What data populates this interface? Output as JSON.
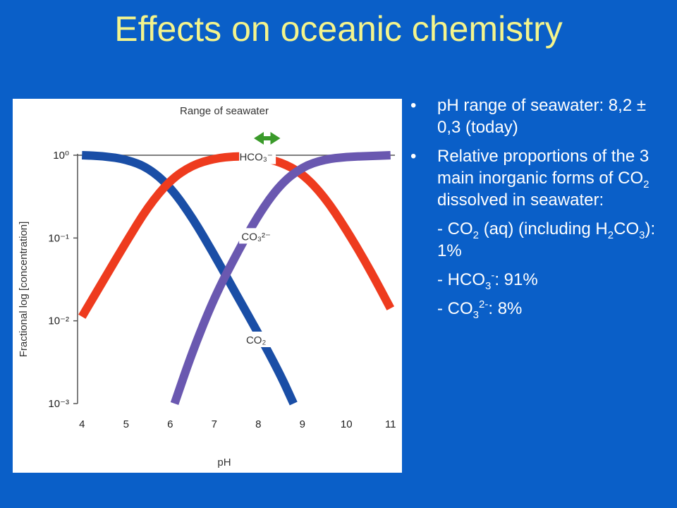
{
  "slide": {
    "title": "Effects on oceanic chemistry"
  },
  "bullets": {
    "b1": "pH range of seawater: 8,2 ± 0,3 (today)",
    "b2_line": "Relative proportions of the 3 main inorganic forms of",
    "b2_co": "CO",
    "b2_sub": "2",
    "b2_tail": "dissolved in seawater:",
    "s1_pre": "- CO",
    "s1_sub": "2",
    "s1_mid": "(aq) (including H",
    "s1_sub2": "2",
    "s1_co": "CO",
    "s1_sub3": "3",
    "s1_end": "): 1%",
    "s2_pre": "- HCO",
    "s2_sub": "3",
    "s2_sup": "-",
    "s2_end": ": 91%",
    "s3_pre": "- CO",
    "s3_sub": "3",
    "s3_sup": "2-",
    "s3_end": ": 8%",
    "dot": "•"
  },
  "chart_data": {
    "type": "line",
    "title": "Range of seawater",
    "xlabel": "pH",
    "ylabel": "Fractional log [concentration]",
    "x_ticks": [
      "4",
      "5",
      "6",
      "7",
      "8",
      "9",
      "10",
      "11"
    ],
    "y_ticks": [
      "10⁰",
      "10⁻¹",
      "10⁻²",
      "10⁻³"
    ],
    "xlim": [
      3.9,
      11.1
    ],
    "ylim": [
      -3,
      0
    ],
    "y_scale": "log",
    "highlight_range": [
      7.9,
      8.5
    ],
    "highlight_color": "#3a9a2a",
    "series": [
      {
        "name": "CO₂",
        "color": "#1a4ea6",
        "x": [
          4.0,
          4.5,
          5.0,
          5.5,
          6.0,
          6.5,
          7.0,
          7.5,
          8.0,
          8.5,
          8.8
        ],
        "y": [
          0.0,
          -0.01,
          -0.05,
          -0.15,
          -0.38,
          -0.75,
          -1.2,
          -1.68,
          -2.15,
          -2.65,
          -3.0
        ]
      },
      {
        "name": "HCO₃⁻",
        "color": "#ee3b1e",
        "x": [
          4.0,
          4.5,
          5.0,
          5.5,
          6.0,
          6.5,
          7.0,
          7.5,
          8.0,
          8.5,
          9.0,
          9.5,
          10.0,
          10.5,
          11.0
        ],
        "y": [
          -1.95,
          -1.5,
          -1.05,
          -0.62,
          -0.3,
          -0.12,
          -0.04,
          -0.01,
          -0.02,
          -0.08,
          -0.22,
          -0.5,
          -0.9,
          -1.35,
          -1.85
        ]
      },
      {
        "name": "CO₃²⁻",
        "color": "#6a58b0",
        "x": [
          6.1,
          6.5,
          7.0,
          7.5,
          8.0,
          8.5,
          9.0,
          9.5,
          10.0,
          10.5,
          11.0
        ],
        "y": [
          -3.0,
          -2.38,
          -1.72,
          -1.2,
          -0.72,
          -0.35,
          -0.14,
          -0.05,
          -0.02,
          -0.01,
          0.0
        ]
      }
    ],
    "curve_labels": [
      "HCO₃⁻",
      "CO₃²⁻",
      "CO₂"
    ]
  }
}
